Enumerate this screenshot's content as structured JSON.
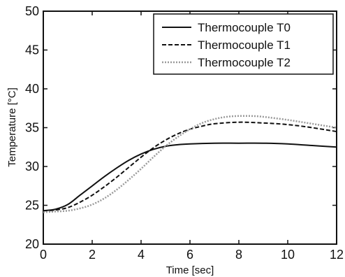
{
  "chart_data": {
    "type": "line",
    "xlabel": "Time [sec]",
    "ylabel": "Temperature [°C]",
    "xlim": [
      0,
      12
    ],
    "ylim": [
      20,
      50
    ],
    "xticks": [
      "0",
      "2",
      "4",
      "6",
      "8",
      "10",
      "12"
    ],
    "yticks": [
      "20",
      "25",
      "30",
      "35",
      "40",
      "45",
      "50"
    ],
    "grid": false,
    "legend_position": "top-right",
    "series": [
      {
        "name": "Thermocouple T0",
        "style": "solid",
        "color": "#111111",
        "x": [
          0,
          0.5,
          1,
          1.5,
          2,
          2.5,
          3,
          3.5,
          4,
          4.5,
          5,
          5.5,
          6,
          7,
          8,
          9,
          10,
          11,
          12
        ],
        "y": [
          24.3,
          24.5,
          25.1,
          26.3,
          27.5,
          28.7,
          29.8,
          30.8,
          31.6,
          32.2,
          32.6,
          32.8,
          32.9,
          33.0,
          33.0,
          33.0,
          32.9,
          32.7,
          32.5
        ]
      },
      {
        "name": "Thermocouple T1",
        "style": "dashed",
        "color": "#111111",
        "x": [
          0,
          0.5,
          1,
          1.5,
          2,
          2.5,
          3,
          3.5,
          4,
          4.5,
          5,
          5.5,
          6,
          6.5,
          7,
          8,
          9,
          10,
          11,
          12
        ],
        "y": [
          24.3,
          24.4,
          24.7,
          25.4,
          26.3,
          27.4,
          28.6,
          29.9,
          31.2,
          32.4,
          33.4,
          34.2,
          34.8,
          35.2,
          35.5,
          35.7,
          35.6,
          35.4,
          35.0,
          34.5
        ]
      },
      {
        "name": "Thermocouple T2",
        "style": "dotted",
        "color": "#9a9a9a",
        "x": [
          0,
          0.5,
          1,
          1.5,
          2,
          2.5,
          3,
          3.5,
          4,
          4.5,
          5,
          5.5,
          6,
          6.5,
          7,
          7.5,
          8,
          8.5,
          9,
          10,
          11,
          12
        ],
        "y": [
          24.1,
          24.2,
          24.3,
          24.6,
          25.1,
          25.9,
          27.0,
          28.3,
          29.7,
          31.2,
          32.6,
          33.8,
          34.8,
          35.6,
          36.1,
          36.4,
          36.5,
          36.5,
          36.4,
          36.0,
          35.5,
          35.0
        ]
      }
    ]
  }
}
